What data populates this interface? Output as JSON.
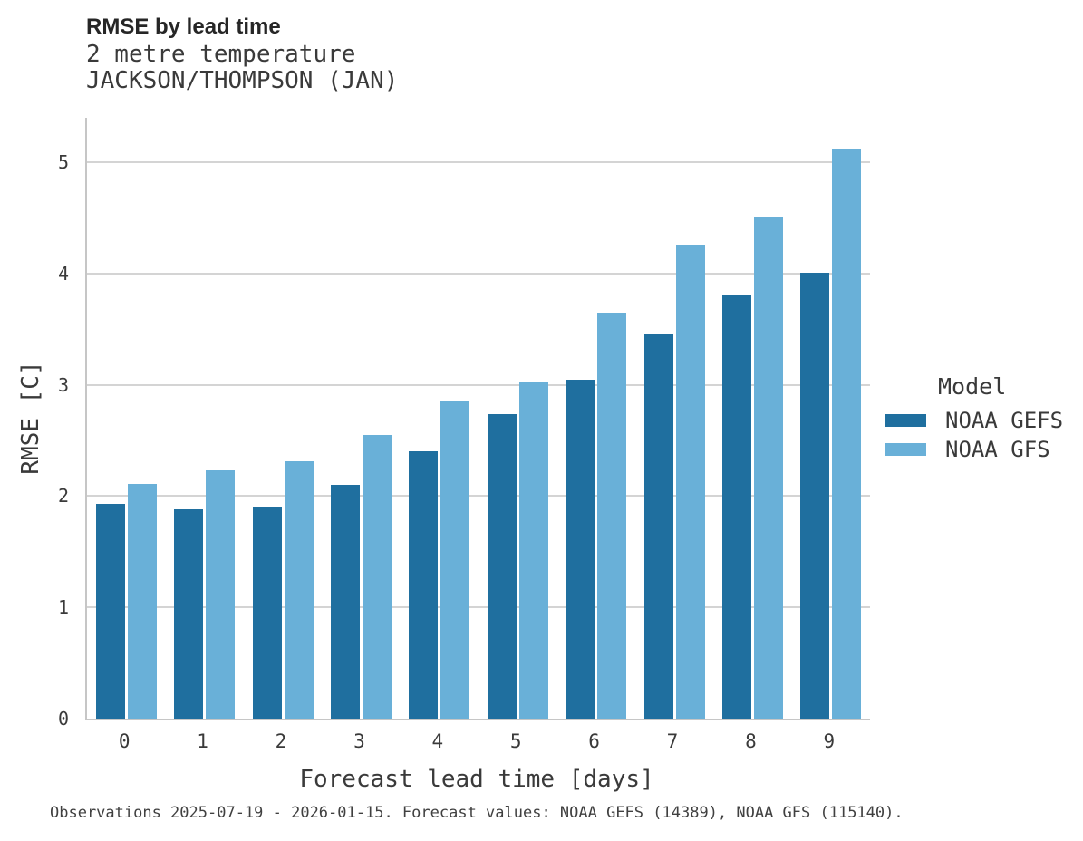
{
  "figure": {
    "title": "RMSE by lead time",
    "subtitle_line1": "2 metre temperature",
    "subtitle_line2": "JACKSON/THOMPSON (JAN)",
    "caption": "Observations 2025-07-19 - 2026-01-15. Forecast values: NOAA GEFS (14389), NOAA GFS (115140)."
  },
  "chart_data": {
    "type": "bar",
    "title": "RMSE by lead time",
    "subtitle": [
      "2 metre temperature",
      "JACKSON/THOMPSON (JAN)"
    ],
    "categories": [
      "0",
      "1",
      "2",
      "3",
      "4",
      "5",
      "6",
      "7",
      "8",
      "9"
    ],
    "series": [
      {
        "name": "NOAA GEFS",
        "color": "#1f6f9f",
        "values": [
          1.93,
          1.88,
          1.9,
          2.1,
          2.4,
          2.74,
          3.05,
          3.45,
          3.8,
          4.01
        ]
      },
      {
        "name": "NOAA GFS",
        "color": "#69b0d8",
        "values": [
          2.11,
          2.23,
          2.31,
          2.55,
          2.86,
          3.03,
          3.65,
          4.26,
          4.51,
          5.12
        ]
      }
    ],
    "xlabel": "Forecast lead time [days]",
    "ylabel": "RMSE [C]",
    "ylim": [
      0,
      5.4
    ],
    "yticks": [
      0,
      1,
      2,
      3,
      4,
      5
    ],
    "grid": "horizontal",
    "legend": {
      "title": "Model",
      "position": "right"
    },
    "colors": {
      "grid": "#d4d4d4",
      "spine": "#c6c6c6",
      "text": "#3a3a3a"
    }
  }
}
